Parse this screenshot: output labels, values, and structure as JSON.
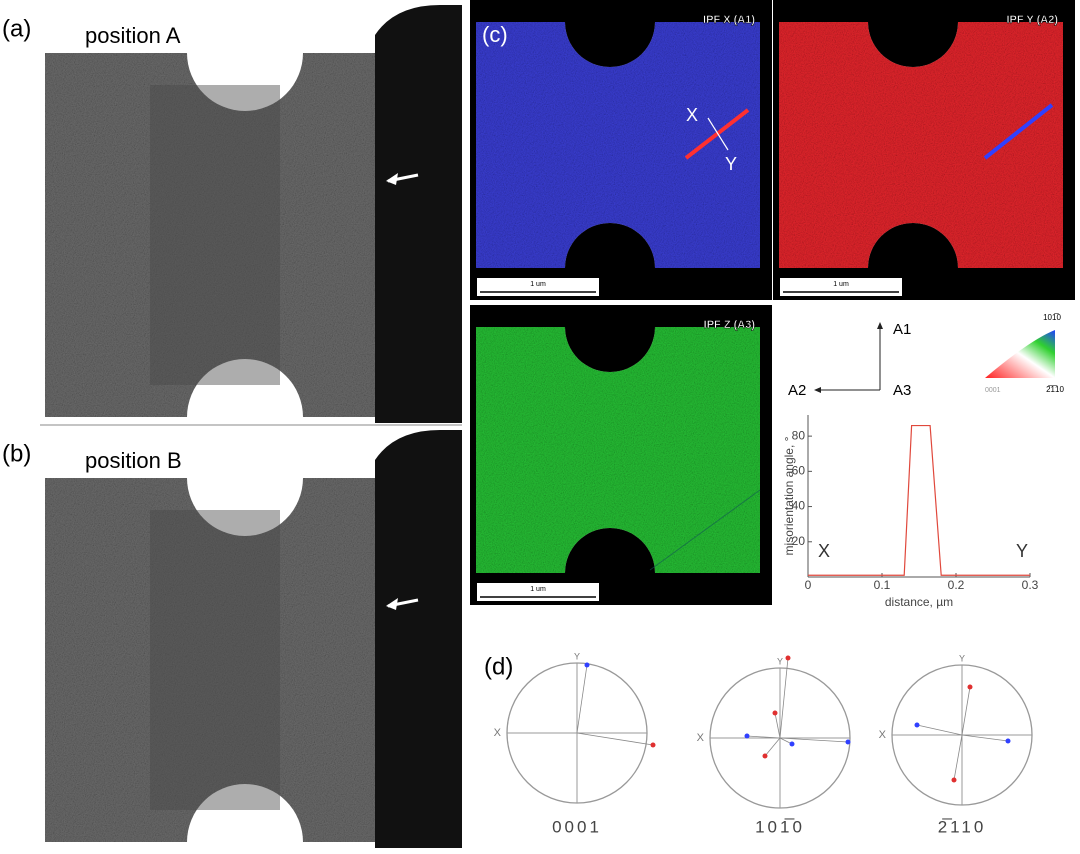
{
  "panel_a": {
    "label": "(a)",
    "caption": "position A"
  },
  "panel_b": {
    "label": "(b)",
    "caption": "position B"
  },
  "panel_c": {
    "label": "(c)",
    "maps": [
      {
        "title": "IPF X (A1)",
        "scale": "1 um"
      },
      {
        "title": "IPF Y (A2)",
        "scale": "1 um"
      },
      {
        "title": "IPF Z (A3)",
        "scale": "1 um"
      }
    ],
    "line_ends": [
      "X",
      "Y"
    ],
    "axes": [
      "A1",
      "A2",
      "A3"
    ],
    "key_corners": [
      "101̅0",
      "0001",
      "2̅1̅10"
    ]
  },
  "chart_data": {
    "type": "line",
    "x_label": "distance, µm",
    "y_label": "misorientation angle, °",
    "x": [
      0,
      0.13,
      0.14,
      0.165,
      0.18,
      0.3
    ],
    "series": [
      {
        "name": "misorientation",
        "color": "#e0483c",
        "values": [
          1,
          1,
          86,
          86,
          1,
          1
        ]
      }
    ],
    "xlim": [
      0,
      0.3
    ],
    "xticks": [
      0,
      0.1,
      0.2,
      0.3
    ],
    "ylim": [
      0,
      92
    ],
    "yticks": [
      20,
      40,
      60,
      80
    ],
    "annotations": [
      "X",
      "Y"
    ]
  },
  "panel_d": {
    "label": "(d)",
    "poles": [
      {
        "axis_y": "Y",
        "axis_x": "X",
        "plane": "0001"
      },
      {
        "axis_y": "Y",
        "axis_x": "X",
        "plane": "101̅0"
      },
      {
        "axis_y": "Y",
        "axis_x": "X",
        "plane": "2̅110"
      }
    ]
  }
}
